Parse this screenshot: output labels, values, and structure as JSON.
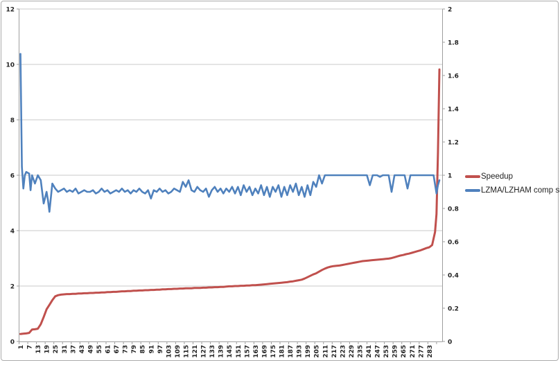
{
  "legend": {
    "items": [
      {
        "label": "Speedup",
        "color": "#c0504d"
      },
      {
        "label": "LZMA/LZHAM comp size",
        "color": "#4f81bd"
      }
    ]
  },
  "chart_data": {
    "type": "line",
    "title": "",
    "xlabel": "",
    "ylabel_left": "",
    "ylabel_right": "",
    "grid": "horizontal-major-left-axis",
    "legend_position": "right",
    "x_tick_labels": [
      "1",
      "7",
      "13",
      "19",
      "25",
      "31",
      "37",
      "43",
      "49",
      "55",
      "61",
      "67",
      "73",
      "79",
      "85",
      "91",
      "97",
      "103",
      "109",
      "115",
      "121",
      "127",
      "133",
      "139",
      "145",
      "151",
      "157",
      "163",
      "169",
      "175",
      "181",
      "187",
      "193",
      "199",
      "205",
      "211",
      "217",
      "223",
      "229",
      "235",
      "241",
      "247",
      "253",
      "259",
      "265",
      "271",
      "277",
      "283"
    ],
    "left_axis": {
      "min": 0,
      "max": 12,
      "step": 2,
      "ticks": [
        "0",
        "2",
        "4",
        "6",
        "8",
        "10",
        "12"
      ]
    },
    "right_axis": {
      "min": 0,
      "max": 2,
      "step": 0.2,
      "ticks": [
        "0",
        "0.2",
        "0.4",
        "0.6",
        "0.8",
        "1",
        "1.2",
        "1.4",
        "1.6",
        "1.8",
        "2"
      ]
    },
    "x_range": {
      "first": 1,
      "last": 290
    },
    "colors": {
      "grid": "#c9c9c9",
      "axis": "#9e9e9e"
    },
    "series": [
      {
        "name": "Speedup",
        "color": "#c0504d",
        "axis": "left",
        "stroke_width": 3,
        "points": [
          [
            1,
            0.27
          ],
          [
            3,
            0.28
          ],
          [
            5,
            0.29
          ],
          [
            7,
            0.31
          ],
          [
            9,
            0.43
          ],
          [
            11,
            0.44
          ],
          [
            13,
            0.46
          ],
          [
            15,
            0.62
          ],
          [
            17,
            0.88
          ],
          [
            19,
            1.16
          ],
          [
            21,
            1.32
          ],
          [
            23,
            1.49
          ],
          [
            25,
            1.63
          ],
          [
            27,
            1.67
          ],
          [
            29,
            1.69
          ],
          [
            31,
            1.7
          ],
          [
            33,
            1.71
          ],
          [
            35,
            1.71
          ],
          [
            37,
            1.72
          ],
          [
            39,
            1.72
          ],
          [
            41,
            1.73
          ],
          [
            43,
            1.73
          ],
          [
            45,
            1.74
          ],
          [
            47,
            1.74
          ],
          [
            49,
            1.75
          ],
          [
            51,
            1.75
          ],
          [
            53,
            1.76
          ],
          [
            55,
            1.76
          ],
          [
            57,
            1.77
          ],
          [
            59,
            1.77
          ],
          [
            61,
            1.78
          ],
          [
            63,
            1.78
          ],
          [
            65,
            1.79
          ],
          [
            67,
            1.79
          ],
          [
            69,
            1.8
          ],
          [
            71,
            1.81
          ],
          [
            73,
            1.81
          ],
          [
            75,
            1.82
          ],
          [
            77,
            1.82
          ],
          [
            79,
            1.83
          ],
          [
            81,
            1.83
          ],
          [
            83,
            1.84
          ],
          [
            85,
            1.84
          ],
          [
            87,
            1.85
          ],
          [
            89,
            1.85
          ],
          [
            91,
            1.86
          ],
          [
            93,
            1.86
          ],
          [
            95,
            1.87
          ],
          [
            97,
            1.87
          ],
          [
            99,
            1.88
          ],
          [
            101,
            1.88
          ],
          [
            103,
            1.89
          ],
          [
            105,
            1.89
          ],
          [
            107,
            1.9
          ],
          [
            109,
            1.9
          ],
          [
            111,
            1.91
          ],
          [
            113,
            1.91
          ],
          [
            115,
            1.92
          ],
          [
            117,
            1.92
          ],
          [
            119,
            1.92
          ],
          [
            121,
            1.93
          ],
          [
            123,
            1.93
          ],
          [
            125,
            1.93
          ],
          [
            127,
            1.94
          ],
          [
            129,
            1.94
          ],
          [
            131,
            1.95
          ],
          [
            133,
            1.95
          ],
          [
            135,
            1.96
          ],
          [
            137,
            1.96
          ],
          [
            139,
            1.97
          ],
          [
            141,
            1.97
          ],
          [
            143,
            1.98
          ],
          [
            145,
            1.99
          ],
          [
            147,
            1.99
          ],
          [
            149,
            2.0
          ],
          [
            151,
            2.0
          ],
          [
            153,
            2.01
          ],
          [
            155,
            2.01
          ],
          [
            157,
            2.02
          ],
          [
            159,
            2.02
          ],
          [
            161,
            2.03
          ],
          [
            163,
            2.03
          ],
          [
            165,
            2.04
          ],
          [
            167,
            2.05
          ],
          [
            169,
            2.06
          ],
          [
            171,
            2.07
          ],
          [
            173,
            2.08
          ],
          [
            175,
            2.09
          ],
          [
            177,
            2.1
          ],
          [
            179,
            2.11
          ],
          [
            181,
            2.12
          ],
          [
            183,
            2.13
          ],
          [
            185,
            2.14
          ],
          [
            187,
            2.16
          ],
          [
            189,
            2.17
          ],
          [
            191,
            2.19
          ],
          [
            193,
            2.21
          ],
          [
            195,
            2.23
          ],
          [
            197,
            2.27
          ],
          [
            199,
            2.32
          ],
          [
            201,
            2.37
          ],
          [
            203,
            2.42
          ],
          [
            205,
            2.46
          ],
          [
            207,
            2.52
          ],
          [
            209,
            2.58
          ],
          [
            211,
            2.63
          ],
          [
            213,
            2.67
          ],
          [
            215,
            2.7
          ],
          [
            217,
            2.72
          ],
          [
            219,
            2.73
          ],
          [
            221,
            2.74
          ],
          [
            223,
            2.76
          ],
          [
            225,
            2.78
          ],
          [
            227,
            2.8
          ],
          [
            229,
            2.82
          ],
          [
            231,
            2.84
          ],
          [
            233,
            2.86
          ],
          [
            235,
            2.88
          ],
          [
            237,
            2.9
          ],
          [
            239,
            2.91
          ],
          [
            241,
            2.92
          ],
          [
            243,
            2.93
          ],
          [
            245,
            2.94
          ],
          [
            247,
            2.95
          ],
          [
            249,
            2.96
          ],
          [
            251,
            2.97
          ],
          [
            253,
            2.98
          ],
          [
            255,
            2.99
          ],
          [
            257,
            3.01
          ],
          [
            259,
            3.04
          ],
          [
            261,
            3.07
          ],
          [
            263,
            3.1
          ],
          [
            265,
            3.12
          ],
          [
            267,
            3.15
          ],
          [
            269,
            3.17
          ],
          [
            271,
            3.2
          ],
          [
            273,
            3.23
          ],
          [
            275,
            3.26
          ],
          [
            277,
            3.29
          ],
          [
            279,
            3.33
          ],
          [
            281,
            3.37
          ],
          [
            283,
            3.4
          ],
          [
            285,
            3.48
          ],
          [
            287,
            3.95
          ],
          [
            288,
            4.6
          ],
          [
            289,
            6.8
          ],
          [
            290,
            9.82
          ]
        ]
      },
      {
        "name": "LZMA/LZHAM comp size",
        "color": "#4f81bd",
        "axis": "right",
        "stroke_width": 2.6,
        "points": [
          [
            1,
            1.73
          ],
          [
            2,
            1.05
          ],
          [
            3,
            0.92
          ],
          [
            4,
            1.0
          ],
          [
            5,
            1.02
          ],
          [
            7,
            1.01
          ],
          [
            8,
            0.91
          ],
          [
            9,
            1.0
          ],
          [
            11,
            0.95
          ],
          [
            13,
            1.0
          ],
          [
            15,
            0.97
          ],
          [
            17,
            0.83
          ],
          [
            19,
            0.9
          ],
          [
            20,
            0.85
          ],
          [
            21,
            0.78
          ],
          [
            23,
            0.95
          ],
          [
            25,
            0.92
          ],
          [
            27,
            0.9
          ],
          [
            29,
            0.91
          ],
          [
            31,
            0.92
          ],
          [
            33,
            0.9
          ],
          [
            35,
            0.91
          ],
          [
            37,
            0.9
          ],
          [
            39,
            0.92
          ],
          [
            41,
            0.89
          ],
          [
            43,
            0.9
          ],
          [
            45,
            0.91
          ],
          [
            47,
            0.9
          ],
          [
            49,
            0.9
          ],
          [
            51,
            0.91
          ],
          [
            53,
            0.89
          ],
          [
            55,
            0.9
          ],
          [
            57,
            0.92
          ],
          [
            59,
            0.9
          ],
          [
            61,
            0.91
          ],
          [
            63,
            0.89
          ],
          [
            65,
            0.9
          ],
          [
            67,
            0.91
          ],
          [
            69,
            0.9
          ],
          [
            71,
            0.92
          ],
          [
            73,
            0.9
          ],
          [
            75,
            0.91
          ],
          [
            77,
            0.89
          ],
          [
            79,
            0.91
          ],
          [
            81,
            0.9
          ],
          [
            83,
            0.92
          ],
          [
            85,
            0.9
          ],
          [
            87,
            0.89
          ],
          [
            89,
            0.91
          ],
          [
            91,
            0.86
          ],
          [
            93,
            0.91
          ],
          [
            95,
            0.9
          ],
          [
            97,
            0.92
          ],
          [
            99,
            0.9
          ],
          [
            101,
            0.91
          ],
          [
            103,
            0.89
          ],
          [
            105,
            0.9
          ],
          [
            107,
            0.92
          ],
          [
            109,
            0.91
          ],
          [
            111,
            0.9
          ],
          [
            113,
            0.96
          ],
          [
            115,
            0.93
          ],
          [
            117,
            0.97
          ],
          [
            119,
            0.91
          ],
          [
            121,
            0.9
          ],
          [
            123,
            0.93
          ],
          [
            125,
            0.91
          ],
          [
            127,
            0.9
          ],
          [
            129,
            0.92
          ],
          [
            131,
            0.87
          ],
          [
            133,
            0.91
          ],
          [
            135,
            0.93
          ],
          [
            137,
            0.9
          ],
          [
            139,
            0.92
          ],
          [
            141,
            0.89
          ],
          [
            143,
            0.92
          ],
          [
            145,
            0.9
          ],
          [
            147,
            0.93
          ],
          [
            149,
            0.89
          ],
          [
            151,
            0.93
          ],
          [
            153,
            0.88
          ],
          [
            155,
            0.94
          ],
          [
            157,
            0.9
          ],
          [
            159,
            0.93
          ],
          [
            161,
            0.88
          ],
          [
            163,
            0.92
          ],
          [
            165,
            0.89
          ],
          [
            167,
            0.94
          ],
          [
            169,
            0.88
          ],
          [
            171,
            0.93
          ],
          [
            173,
            0.87
          ],
          [
            175,
            0.93
          ],
          [
            177,
            0.9
          ],
          [
            179,
            0.94
          ],
          [
            181,
            0.87
          ],
          [
            183,
            0.93
          ],
          [
            185,
            0.88
          ],
          [
            187,
            0.94
          ],
          [
            189,
            0.9
          ],
          [
            191,
            0.95
          ],
          [
            193,
            0.88
          ],
          [
            195,
            0.93
          ],
          [
            197,
            0.87
          ],
          [
            199,
            0.94
          ],
          [
            201,
            0.88
          ],
          [
            203,
            0.96
          ],
          [
            205,
            0.93
          ],
          [
            207,
            1.0
          ],
          [
            209,
            0.95
          ],
          [
            211,
            1.0
          ],
          [
            215,
            1.0
          ],
          [
            220,
            1.0
          ],
          [
            225,
            1.0
          ],
          [
            230,
            1.0
          ],
          [
            235,
            1.0
          ],
          [
            240,
            1.0
          ],
          [
            242,
            0.94
          ],
          [
            244,
            1.0
          ],
          [
            247,
            1.0
          ],
          [
            249,
            0.99
          ],
          [
            251,
            1.0
          ],
          [
            255,
            1.0
          ],
          [
            257,
            0.9
          ],
          [
            259,
            1.0
          ],
          [
            263,
            1.0
          ],
          [
            266,
            1.0
          ],
          [
            268,
            0.92
          ],
          [
            270,
            1.0
          ],
          [
            275,
            1.0
          ],
          [
            280,
            1.0
          ],
          [
            284,
            1.0
          ],
          [
            286,
            1.0
          ],
          [
            288,
            0.89
          ],
          [
            289,
            0.94
          ],
          [
            290,
            0.97
          ]
        ]
      }
    ]
  }
}
